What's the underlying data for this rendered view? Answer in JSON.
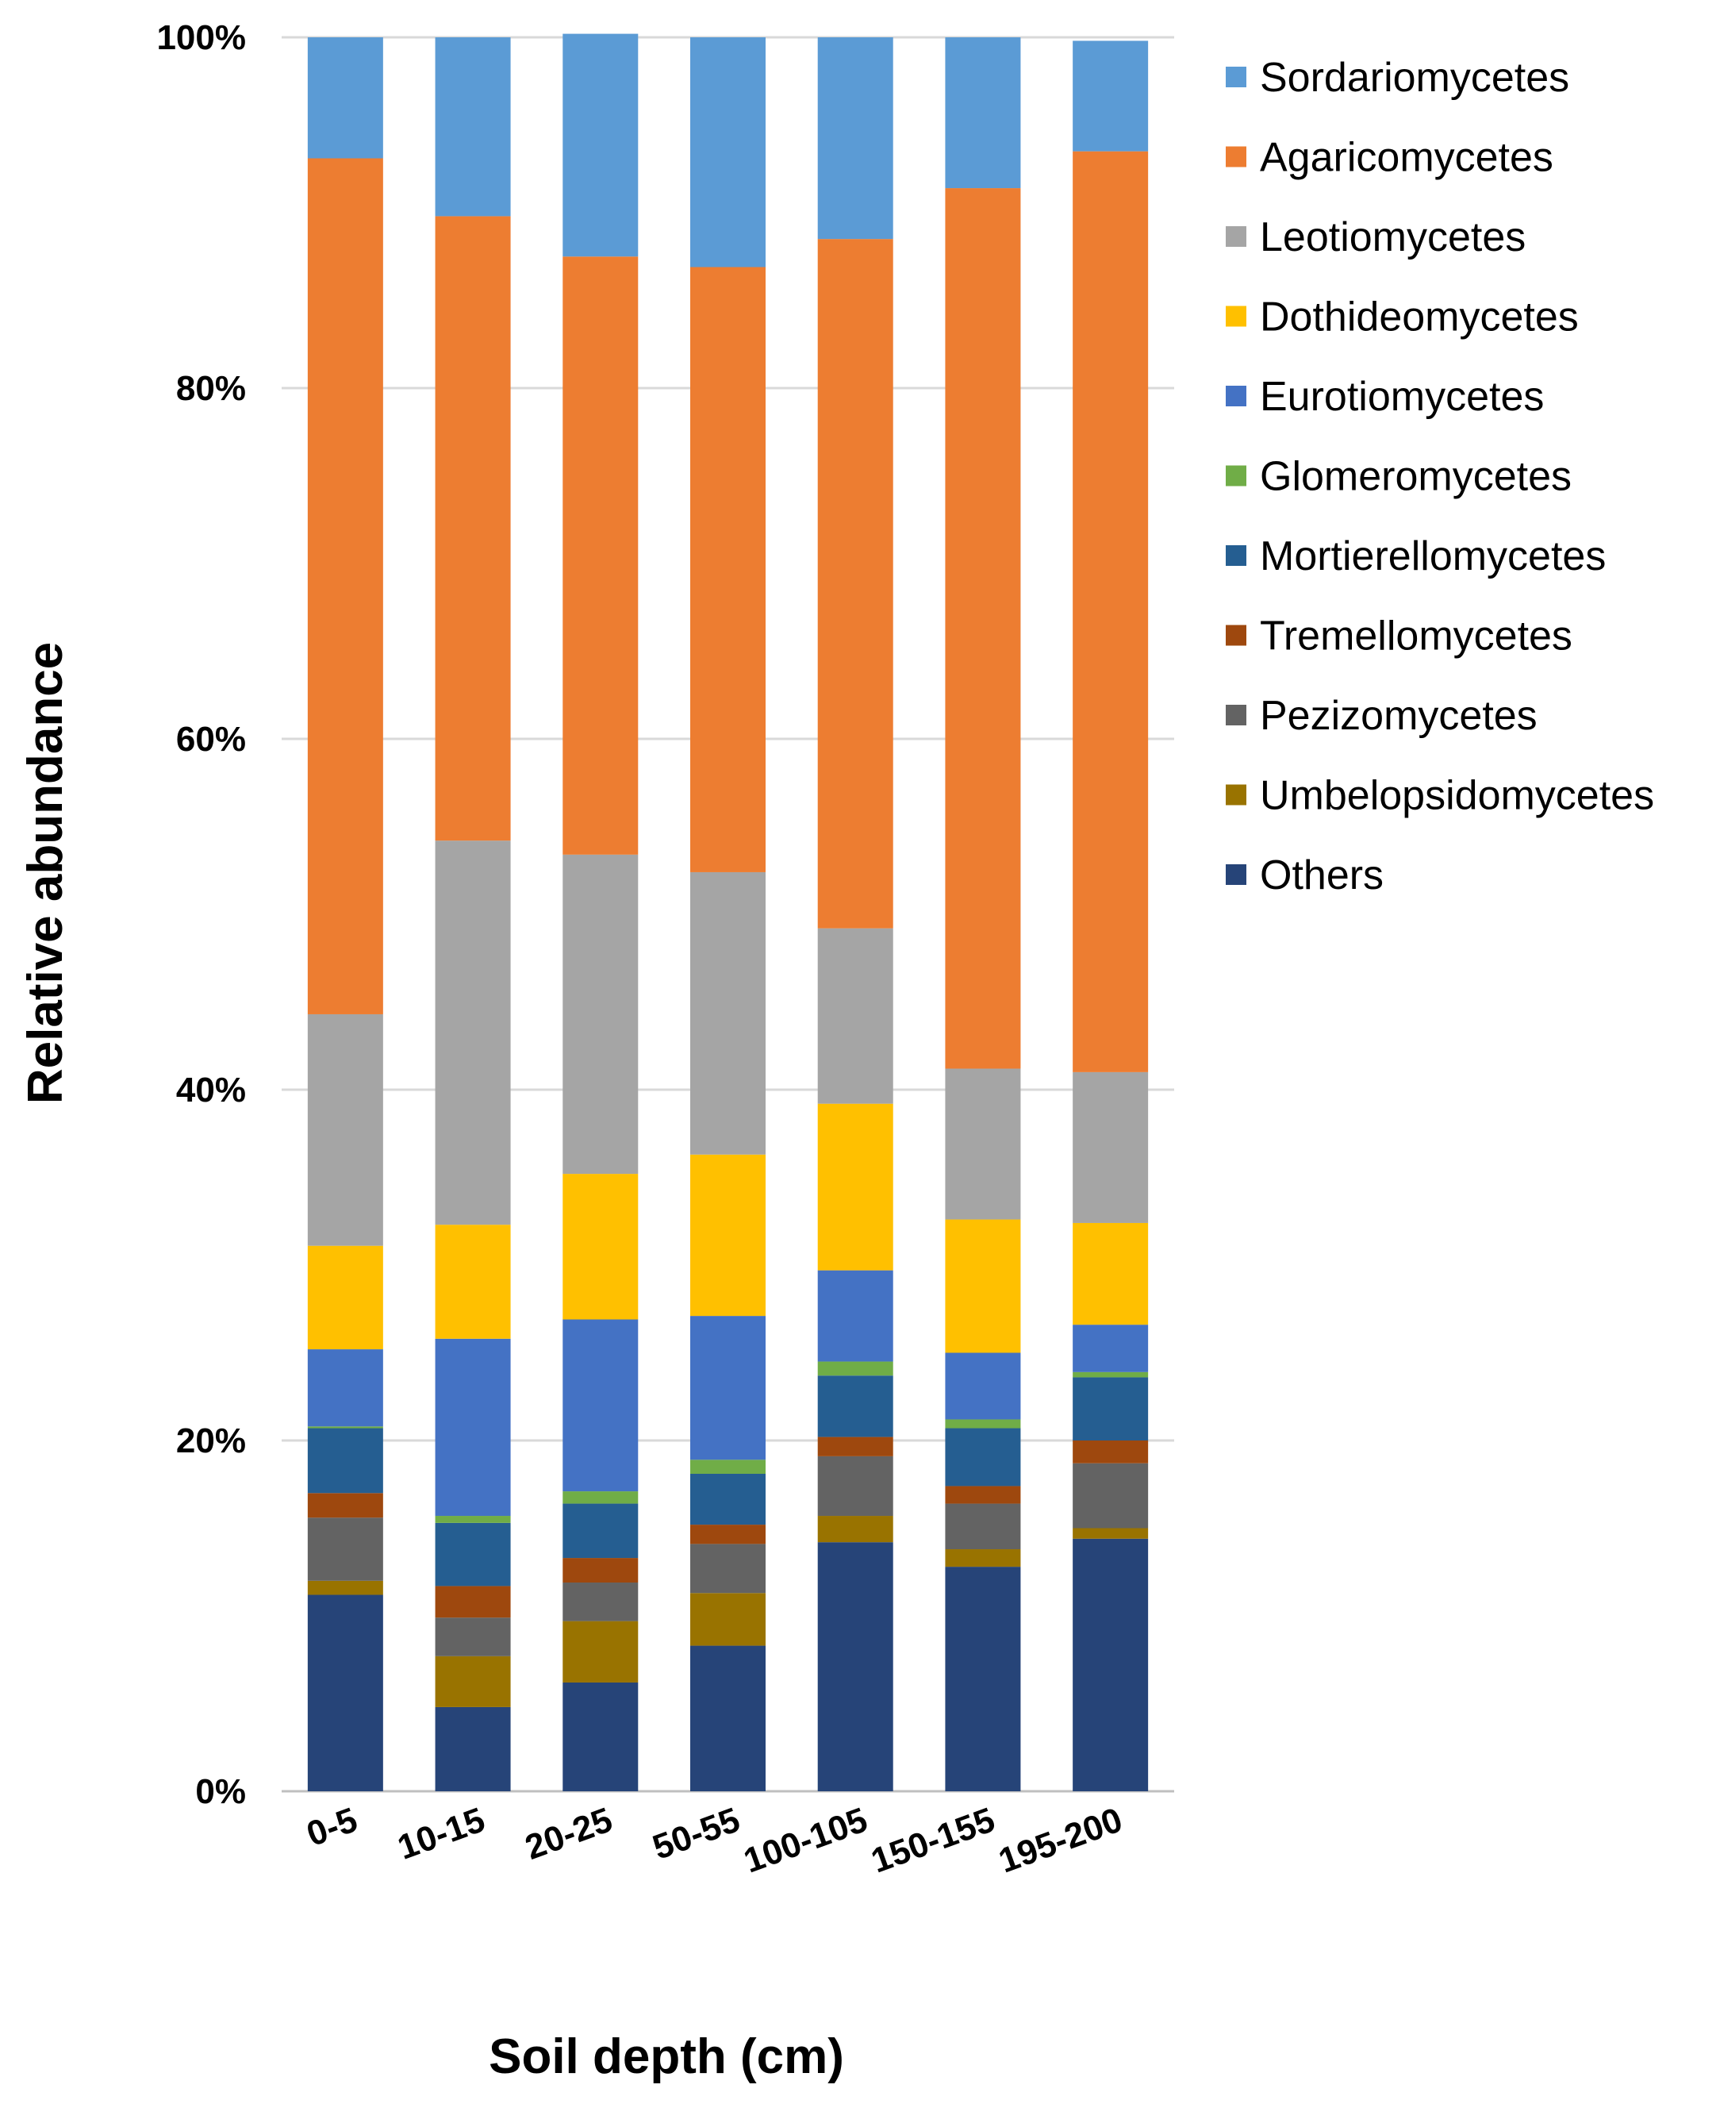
{
  "chart_data": {
    "type": "bar",
    "stacked": true,
    "title": "",
    "xlabel": "Soil depth (cm)",
    "ylabel": "Relative abundance",
    "ylim": [
      0,
      100
    ],
    "y_ticks": [
      "0%",
      "20%",
      "40%",
      "60%",
      "80%",
      "100%"
    ],
    "grid": true,
    "legend_position": "right",
    "categories": [
      "0-5",
      "10-15",
      "20-25",
      "50-55",
      "100-105",
      "150-155",
      "195-200"
    ],
    "series": [
      {
        "name": "Others",
        "color": "#264478",
        "values": [
          11.2,
          4.8,
          6.2,
          8.3,
          14.2,
          12.8,
          14.4
        ]
      },
      {
        "name": "Umbelopsidomycetes",
        "color": "#997300",
        "values": [
          0.8,
          2.9,
          3.5,
          3.0,
          1.5,
          1.0,
          0.6
        ]
      },
      {
        "name": "Pezizomycetes",
        "color": "#636363",
        "values": [
          3.6,
          2.2,
          2.2,
          2.8,
          3.4,
          2.6,
          3.7
        ]
      },
      {
        "name": "Tremellomycetes",
        "color": "#9E480E",
        "values": [
          1.4,
          1.8,
          1.4,
          1.1,
          1.1,
          1.0,
          1.3
        ]
      },
      {
        "name": "Mortierellomycetes",
        "color": "#255E91",
        "values": [
          3.7,
          3.6,
          3.1,
          2.9,
          3.5,
          3.3,
          3.6
        ]
      },
      {
        "name": "Glomeromycetes",
        "color": "#70AD47",
        "values": [
          0.1,
          0.4,
          0.7,
          0.8,
          0.8,
          0.5,
          0.3
        ]
      },
      {
        "name": "Eurotiomycetes",
        "color": "#4472C4",
        "values": [
          4.4,
          10.1,
          9.8,
          8.2,
          5.2,
          3.8,
          2.7
        ]
      },
      {
        "name": "Dothideomycetes",
        "color": "#FFC000",
        "values": [
          5.9,
          6.5,
          8.3,
          9.2,
          9.5,
          7.6,
          5.8
        ]
      },
      {
        "name": "Leotiomycetes",
        "color": "#A5A5A5",
        "values": [
          13.2,
          21.9,
          18.2,
          16.1,
          10.0,
          8.6,
          8.6
        ]
      },
      {
        "name": "Agaricomycetes",
        "color": "#ED7D31",
        "values": [
          48.8,
          35.6,
          34.1,
          34.5,
          39.3,
          50.2,
          52.5
        ]
      },
      {
        "name": "Sordariomycetes",
        "color": "#5B9BD5",
        "values": [
          6.9,
          10.2,
          12.7,
          13.1,
          11.5,
          8.6,
          6.3
        ]
      }
    ],
    "legend_order": [
      "Sordariomycetes",
      "Agaricomycetes",
      "Leotiomycetes",
      "Dothideomycetes",
      "Eurotiomycetes",
      "Glomeromycetes",
      "Mortierellomycetes",
      "Tremellomycetes",
      "Pezizomycetes",
      "Umbelopsidomycetes",
      "Others"
    ]
  },
  "colors": {
    "gridline": "#D9D9D9",
    "axis_line": "#BFBFBF",
    "text": "#000000"
  }
}
